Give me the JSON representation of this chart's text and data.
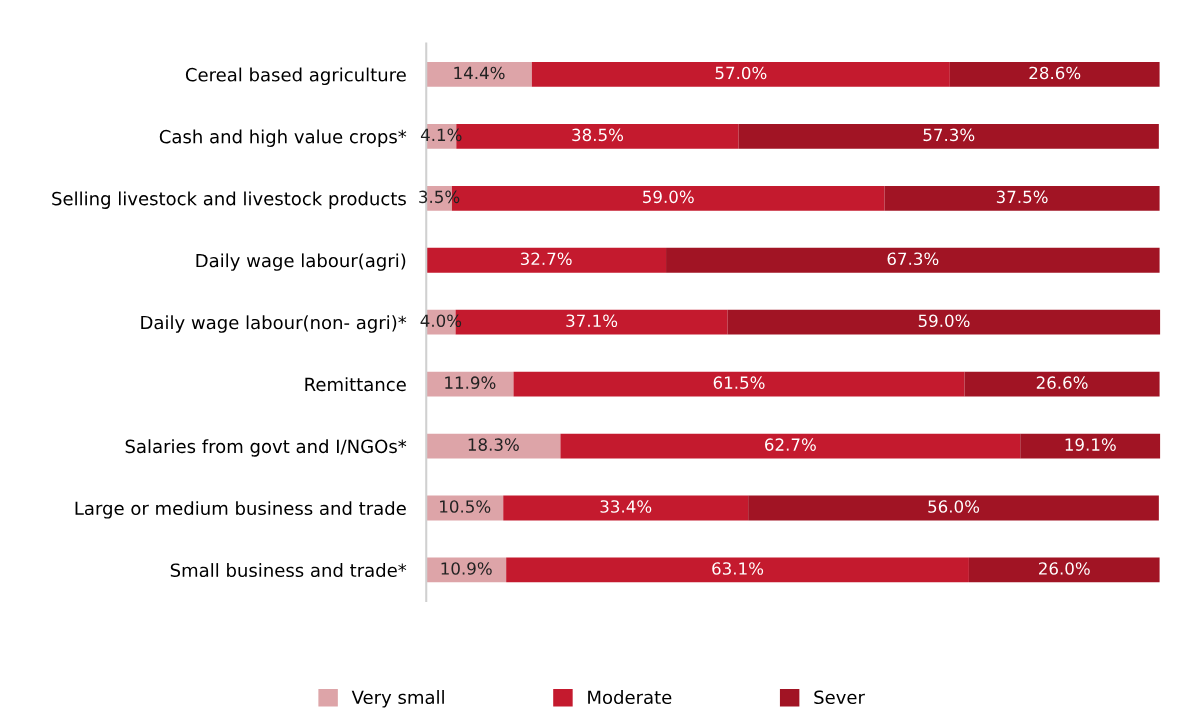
{
  "chart_data": {
    "type": "bar",
    "orientation": "horizontal",
    "stacked": true,
    "legend": "bottom",
    "grid": false,
    "tick_labels": "y",
    "categories": [
      "Cereal based agriculture",
      "Cash and high value crops*",
      "Selling livestock and livestock products",
      "Daily wage labour(agri)",
      "Daily wage labour(non- agri)*",
      "Remittance",
      "Salaries from govt and I/NGOs*",
      "Large or medium business and trade",
      "Small business and trade*"
    ],
    "series": [
      {
        "name": "Very small",
        "color": "#dda4a8",
        "values": [
          14.4,
          4.1,
          3.5,
          0,
          4.0,
          11.9,
          18.3,
          10.5,
          10.9
        ],
        "value_labels": [
          "14.4%",
          "4.1%",
          "3.5%",
          null,
          "4.0%",
          "11.9%",
          "18.3%",
          "10.5%",
          "10.9%"
        ]
      },
      {
        "name": "Moderate",
        "color": "#c41a2e",
        "values": [
          57.0,
          38.5,
          59.0,
          32.7,
          37.1,
          61.5,
          62.7,
          33.4,
          63.1
        ],
        "value_labels": [
          "57.0%",
          "38.5%",
          "59.0%",
          "32.7%",
          "37.1%",
          "61.5%",
          "62.7%",
          "33.4%",
          "63.1%"
        ]
      },
      {
        "name": "Sever",
        "color": "#a11424",
        "values": [
          28.6,
          57.3,
          37.5,
          67.3,
          59.0,
          26.6,
          19.1,
          56.0,
          26.0
        ],
        "value_labels": [
          "28.6%",
          "57.3%",
          "37.5%",
          "67.3%",
          "59.0%",
          "26.6%",
          "19.1%",
          "56.0%",
          "26.0%"
        ]
      }
    ]
  }
}
